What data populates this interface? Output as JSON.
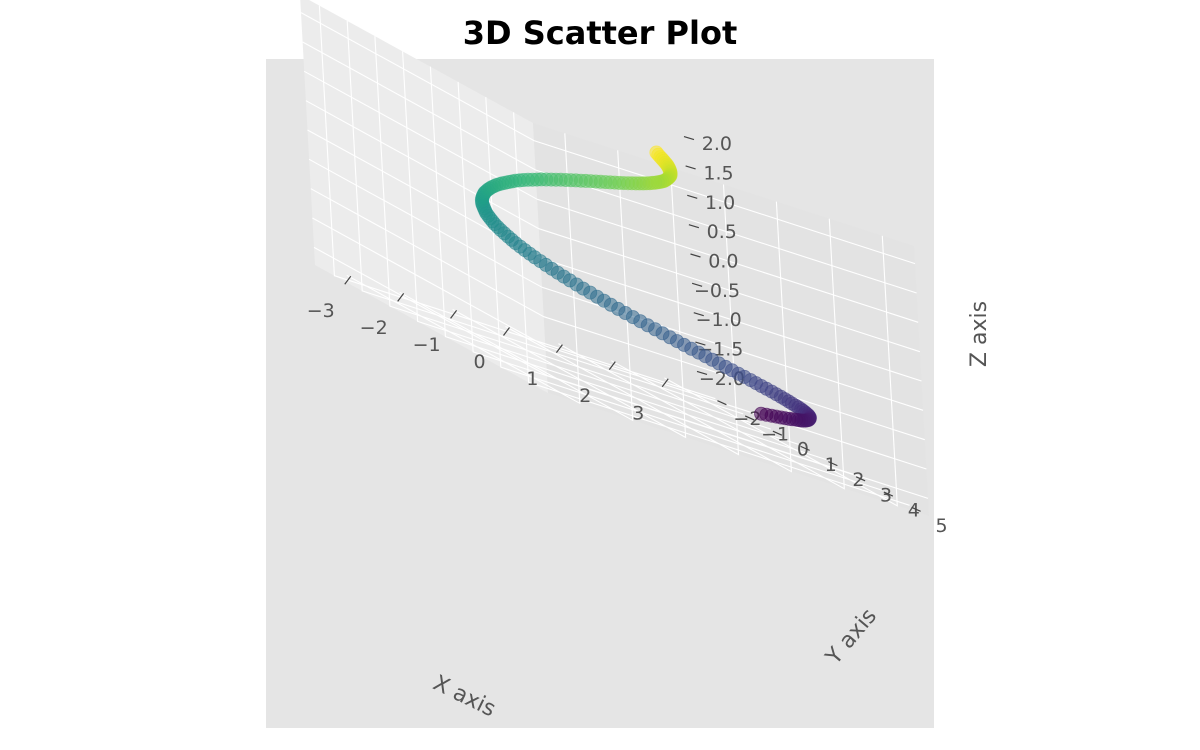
{
  "chart_data": {
    "type": "scatter",
    "projection": "3d",
    "title": "3D Scatter Plot",
    "xlabel": "X axis",
    "ylabel": "Y axis",
    "zlabel": "Z axis",
    "xlim": [
      -3.6,
      3.6
    ],
    "ylim": [
      -2.7,
      5.7
    ],
    "zlim": [
      -2.3,
      2.3
    ],
    "xticks": [
      -3,
      -2,
      -1,
      0,
      1,
      2,
      3
    ],
    "xtick_labels": [
      "−3",
      "−2",
      "−1",
      "0",
      "1",
      "2",
      "3"
    ],
    "yticks": [
      -2,
      -1,
      0,
      1,
      2,
      3,
      4,
      5
    ],
    "ytick_labels": [
      "−2",
      "−1",
      "0",
      "1",
      "2",
      "3",
      "4",
      "5"
    ],
    "zticks": [
      -2.0,
      -1.5,
      -1.0,
      -0.5,
      0.0,
      0.5,
      1.0,
      1.5,
      2.0
    ],
    "ztick_labels": [
      "−2.0",
      "−1.5",
      "−1.0",
      "−0.5",
      "0.0",
      "0.5",
      "1.0",
      "1.5",
      "2.0"
    ],
    "grid": true,
    "colormap": "viridis",
    "marker_alpha": 0.4,
    "series": [
      {
        "points": [
          [
            3.02,
            0.79,
            -2.0
          ],
          [
            3.09,
            1.04,
            -1.95
          ],
          [
            3.14,
            1.29,
            -1.9
          ],
          [
            3.17,
            1.54,
            -1.85
          ],
          [
            3.17,
            1.79,
            -1.8
          ],
          [
            3.15,
            2.02,
            -1.76
          ],
          [
            3.11,
            2.26,
            -1.71
          ],
          [
            3.05,
            2.48,
            -1.66
          ],
          [
            2.96,
            2.7,
            -1.61
          ],
          [
            2.86,
            2.9,
            -1.56
          ],
          [
            2.73,
            3.1,
            -1.51
          ],
          [
            2.58,
            3.28,
            -1.46
          ],
          [
            2.42,
            3.45,
            -1.41
          ],
          [
            2.23,
            3.61,
            -1.36
          ],
          [
            2.03,
            3.75,
            -1.31
          ],
          [
            1.82,
            3.88,
            -1.26
          ],
          [
            1.59,
            3.99,
            -1.21
          ],
          [
            1.35,
            4.08,
            -1.16
          ],
          [
            1.11,
            4.16,
            -1.11
          ],
          [
            0.85,
            4.22,
            -1.06
          ],
          [
            0.59,
            4.26,
            -1.01
          ],
          [
            0.33,
            4.28,
            -0.96
          ],
          [
            0.07,
            4.29,
            -0.91
          ],
          [
            -0.19,
            4.27,
            -0.86
          ],
          [
            -0.44,
            4.24,
            -0.81
          ],
          [
            -0.69,
            4.19,
            -0.76
          ],
          [
            -0.93,
            4.12,
            -0.71
          ],
          [
            -1.16,
            4.03,
            -0.66
          ],
          [
            -1.38,
            3.93,
            -0.61
          ],
          [
            -1.58,
            3.82,
            -0.56
          ],
          [
            -1.77,
            3.69,
            -0.51
          ],
          [
            -1.94,
            3.54,
            -0.46
          ],
          [
            -2.09,
            3.39,
            -0.41
          ],
          [
            -2.22,
            3.22,
            -0.36
          ],
          [
            -2.34,
            3.05,
            -0.31
          ],
          [
            -2.43,
            2.87,
            -0.26
          ],
          [
            -2.5,
            2.68,
            -0.21
          ],
          [
            -2.54,
            2.49,
            -0.16
          ],
          [
            -2.57,
            2.29,
            -0.11
          ],
          [
            -2.58,
            2.1,
            -0.06
          ],
          [
            -2.56,
            1.9,
            -0.01
          ],
          [
            -2.53,
            1.71,
            0.04
          ],
          [
            -2.47,
            1.52,
            0.09
          ],
          [
            -2.4,
            1.33,
            0.14
          ],
          [
            -2.31,
            1.15,
            0.19
          ],
          [
            -2.2,
            0.98,
            0.24
          ],
          [
            -2.08,
            0.82,
            0.29
          ],
          [
            -1.94,
            0.67,
            0.34
          ],
          [
            -1.79,
            0.53,
            0.39
          ],
          [
            -1.63,
            0.4,
            0.44
          ],
          [
            -1.46,
            0.29,
            0.49
          ],
          [
            -1.28,
            0.19,
            0.54
          ],
          [
            -1.1,
            0.1,
            0.59
          ],
          [
            -0.91,
            0.03,
            0.64
          ],
          [
            -0.71,
            -0.02,
            0.69
          ],
          [
            -0.52,
            -0.06,
            0.74
          ],
          [
            -0.32,
            -0.08,
            0.79
          ],
          [
            -0.13,
            -0.09,
            0.84
          ],
          [
            0.06,
            -0.08,
            0.89
          ],
          [
            0.24,
            -0.06,
            0.94
          ],
          [
            0.41,
            -0.02,
            0.99
          ],
          [
            0.58,
            0.02,
            1.04
          ],
          [
            0.73,
            0.08,
            1.09
          ],
          [
            0.87,
            0.15,
            1.14
          ],
          [
            1.0,
            0.22,
            1.19
          ],
          [
            1.11,
            0.3,
            1.24
          ],
          [
            1.21,
            0.38,
            1.29
          ],
          [
            1.29,
            0.47,
            1.34
          ],
          [
            1.35,
            0.56,
            1.39
          ],
          [
            1.4,
            0.65,
            1.44
          ],
          [
            1.43,
            0.74,
            1.49
          ],
          [
            1.44,
            0.82,
            1.54
          ],
          [
            1.44,
            0.9,
            1.59
          ],
          [
            1.43,
            0.98,
            1.64
          ],
          [
            1.4,
            1.05,
            1.69
          ],
          [
            1.36,
            1.11,
            1.74
          ],
          [
            1.31,
            1.17,
            1.79
          ],
          [
            1.25,
            1.22,
            1.84
          ],
          [
            1.18,
            1.25,
            1.89
          ],
          [
            1.1,
            1.28,
            1.94
          ],
          [
            1.02,
            1.3,
            2.0
          ]
        ]
      }
    ]
  }
}
